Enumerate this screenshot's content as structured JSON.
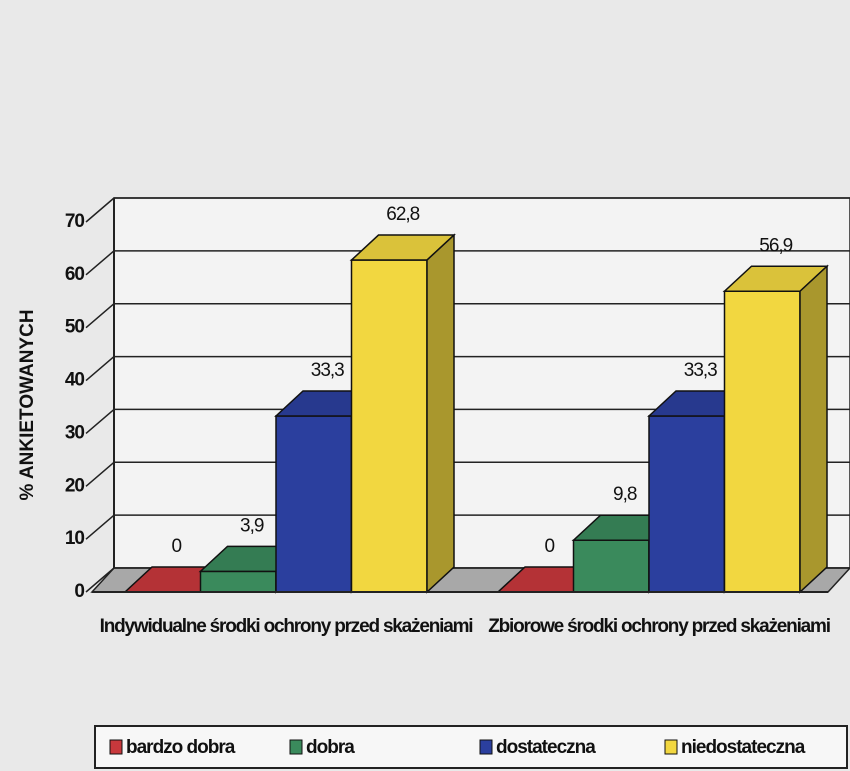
{
  "chart_data": {
    "type": "bar3d",
    "y_label": "% ANKIETOWANYCH",
    "categories": [
      "Indywidualne środki ochrony przed skażeniami",
      "Zbiorowe środki ochrony przed skażeniami"
    ],
    "series": [
      {
        "name": "bardzo dobra",
        "color": "#c8383c",
        "values": [
          0,
          0
        ],
        "value_labels": [
          "0",
          "0"
        ]
      },
      {
        "name": "dobra",
        "color": "#3a8a5c",
        "values": [
          3.9,
          9.8
        ],
        "value_labels": [
          "3,9",
          "9,8"
        ]
      },
      {
        "name": "dostateczna",
        "color": "#2b3f9e",
        "values": [
          33.3,
          33.3
        ],
        "value_labels": [
          "33,3",
          "33,3"
        ]
      },
      {
        "name": "niedostateczna",
        "color": "#f2d740",
        "values": [
          62.8,
          56.9
        ],
        "value_labels": [
          "62,8",
          "56,9"
        ]
      }
    ],
    "ylim": [
      0,
      70
    ],
    "yticks": [
      0,
      10,
      20,
      30,
      40,
      50,
      60,
      70
    ],
    "grid": true,
    "legend": "bottom"
  }
}
